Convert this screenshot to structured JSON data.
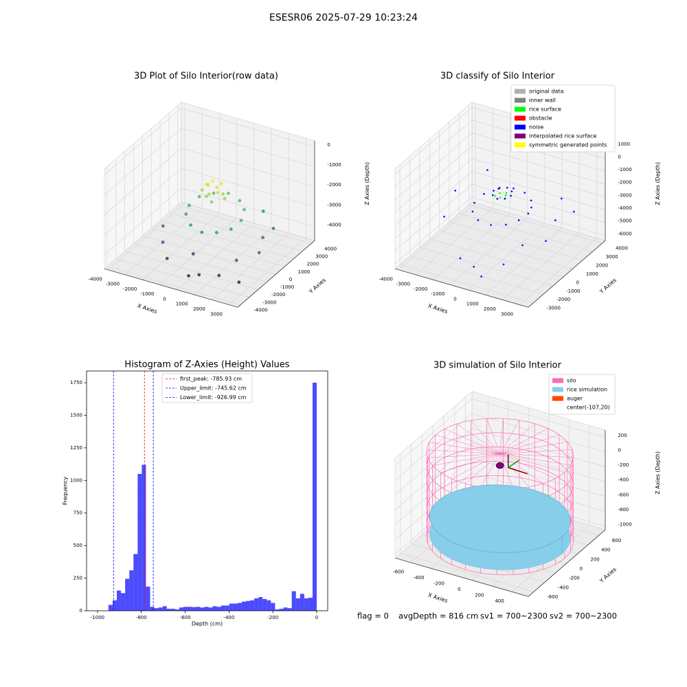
{
  "suptitle": "ESESR06 2025-07-29 10:23:24",
  "footer": [
    "flag = 0",
    "avgDepth = 816 cm",
    "sv1 = 700~2300",
    "sv2 = 700~2300"
  ],
  "chart_data": [
    {
      "type": "scatter3d",
      "title": "3D Plot of Silo Interior(row data)",
      "x_label": "X Axies",
      "y_label": "Y Axies",
      "z_label": "Z Axies (Depth)",
      "xlim": [
        -4200,
        3500
      ],
      "ylim": [
        -4300,
        4400
      ],
      "zlim": [
        -4700,
        300
      ],
      "xticks": [
        -4000,
        -3000,
        -2000,
        -1000,
        0,
        1000,
        2000,
        3000
      ],
      "yticks": [
        -4000,
        -3000,
        -2000,
        -1000,
        0,
        1000,
        2000,
        3000,
        4000
      ],
      "zticks": [
        0,
        -1000,
        -2000,
        -3000,
        -4000
      ],
      "colormap": "viridis",
      "points": {
        "x": [
          -500,
          -300,
          0,
          200,
          -200,
          100,
          -600,
          300,
          -400,
          0,
          500,
          -800,
          1500,
          1300,
          750,
          0,
          -750,
          -1300,
          -1500,
          -1300,
          -750,
          0,
          750,
          1300,
          2500,
          2800,
          2000,
          -2500,
          -2000,
          2600,
          1500,
          -1500,
          500,
          1500,
          -500,
          2500,
          0
        ],
        "y": [
          0,
          300,
          200,
          -100,
          -300,
          500,
          400,
          300,
          -200,
          -400,
          100,
          100,
          0,
          750,
          1300,
          1500,
          1300,
          750,
          0,
          -750,
          -1300,
          -1500,
          -1300,
          -750,
          500,
          -500,
          -1500,
          -1000,
          -2000,
          1500,
          2500,
          -2500,
          -2800,
          -2500,
          -1500,
          -2200,
          -3000
        ],
        "z": [
          -1200,
          -1100,
          -1300,
          -1400,
          -1500,
          -1200,
          -1400,
          -1600,
          -1700,
          -1800,
          -1700,
          -1600,
          -2500,
          -2300,
          -2200,
          -2100,
          -2200,
          -2300,
          -2500,
          -2600,
          -2800,
          -2900,
          -2800,
          -2700,
          -3300,
          -3600,
          -3800,
          -3400,
          -3700,
          -3200,
          -3000,
          -4200,
          -4400,
          -4300,
          -4100,
          -4500,
          -4500
        ]
      }
    },
    {
      "type": "classify3d",
      "title": "3D classify of Silo Interior",
      "x_label": "X Axies",
      "y_label": "Y Axies",
      "z_label": "Z Axies (Depth)",
      "xlim": [
        -4200,
        3500
      ],
      "ylim": [
        -3500,
        4300
      ],
      "zlim": [
        -6400,
        1400
      ],
      "xticks": [
        -4000,
        -3000,
        -2000,
        -1000,
        0,
        1000,
        2000,
        3000
      ],
      "yticks": [
        -3000,
        -2000,
        -1000,
        0,
        1000,
        2000,
        3000,
        4000
      ],
      "zticks": [
        1000,
        0,
        -1000,
        -2000,
        -3000,
        -4000,
        -5000,
        -6000
      ],
      "series": [
        {
          "name": "original data",
          "color": "#b0b0b0"
        },
        {
          "name": "inner wall",
          "color": "#808080"
        },
        {
          "name": "rice surface",
          "color": "#00ff00",
          "x": [
            200,
            -200,
            0,
            300,
            -300,
            100
          ],
          "y": [
            0,
            100,
            -200,
            -250,
            -200,
            250
          ],
          "z": [
            -1300,
            -1350,
            -1400,
            -1350,
            -1400,
            -1300
          ]
        },
        {
          "name": "obstacle",
          "color": "#ff0000"
        },
        {
          "name": "noise",
          "color": "#0000ff",
          "x": [
            1500,
            1400,
            1100,
            500,
            -200,
            -900,
            -1400,
            -1500,
            -1200,
            -600,
            200,
            900,
            1300,
            500,
            350,
            0,
            -350,
            -500,
            -350,
            0,
            350,
            2500,
            2800,
            -2500,
            -3000,
            1500,
            -1000,
            2000,
            500,
            -2000,
            3000,
            -500,
            2200
          ],
          "y": [
            0,
            500,
            1000,
            1400,
            1500,
            1200,
            600,
            -200,
            -900,
            -1400,
            -1500,
            -1200,
            -600,
            0,
            350,
            500,
            350,
            0,
            -350,
            -500,
            -350,
            1000,
            -500,
            -1500,
            500,
            -2500,
            -2500,
            2500,
            -3000,
            2000,
            2000,
            -2000,
            -1800
          ],
          "z": [
            -2200,
            -2100,
            -2000,
            -1900,
            -1900,
            -2000,
            -2200,
            -2400,
            -2500,
            -2600,
            -2600,
            -2500,
            -2400,
            -1200,
            -1150,
            -1100,
            -1150,
            -1200,
            -1250,
            -1300,
            -1250,
            -3000,
            -3500,
            -3000,
            -2500,
            -4500,
            -5000,
            -2500,
            -5500,
            -1500,
            -2800,
            -5800,
            -3200
          ]
        },
        {
          "name": "interpolated rice surface",
          "color": "#800080"
        },
        {
          "name": "symmetric generated points",
          "color": "#ffff00"
        }
      ]
    },
    {
      "type": "histogram",
      "title": "Histogram of Z-Axies (Height) Values",
      "x_label": "Depth (cm)",
      "y_label": "Frequency",
      "color": "#0000ff",
      "alpha": 0.7,
      "xlim": [
        -1050,
        50
      ],
      "ylim": [
        0,
        1840
      ],
      "xticks": [
        -1000,
        -800,
        -600,
        -400,
        -200,
        0
      ],
      "yticks": [
        0,
        250,
        500,
        750,
        1000,
        1250,
        1500,
        1750
      ],
      "bins": [
        -950,
        -931,
        -912,
        -893,
        -874,
        -855,
        -836,
        -817,
        -798,
        -779,
        -760,
        -741,
        -722,
        -703,
        -684,
        -665,
        -646,
        -627,
        -608,
        -589,
        -570,
        -551,
        -532,
        -513,
        -494,
        -475,
        -456,
        -437,
        -418,
        -399,
        -380,
        -361,
        -342,
        -323,
        -304,
        -285,
        -266,
        -247,
        -228,
        -209,
        -190,
        -171,
        -152,
        -133,
        -114,
        -95,
        -76,
        -57,
        -38,
        -19,
        0
      ],
      "counts": [
        45,
        80,
        155,
        135,
        245,
        310,
        435,
        1050,
        1120,
        185,
        30,
        20,
        25,
        35,
        15,
        15,
        10,
        25,
        30,
        30,
        28,
        30,
        25,
        30,
        25,
        35,
        30,
        40,
        40,
        55,
        55,
        60,
        70,
        75,
        80,
        95,
        105,
        90,
        80,
        60,
        10,
        15,
        25,
        20,
        150,
        95,
        130,
        95,
        100,
        1750
      ],
      "vlines": [
        {
          "value": -785.93,
          "label": "first_peak: -785.93 cm",
          "color": "#ff0000"
        },
        {
          "value": -745.62,
          "label": "Upper_limit: -745.62 cm",
          "color": "#0000ff"
        },
        {
          "value": -926.99,
          "label": "Lower_limit: -926.99 cm",
          "color": "#0000ff"
        }
      ]
    },
    {
      "type": "silo3d",
      "title": "3D simulation of Silo Interior",
      "x_label": "X Axies",
      "y_label": "Y Axies",
      "z_label": "Z Axies (Depth)",
      "xlim": [
        -760,
        560
      ],
      "ylim": [
        -700,
        720
      ],
      "zlim": [
        -1050,
        300
      ],
      "xticks": [
        -600,
        -400,
        -200,
        0,
        200,
        400
      ],
      "yticks": [
        -600,
        -400,
        -200,
        0,
        200,
        400,
        600
      ],
      "zticks": [
        200,
        0,
        -200,
        -400,
        -600,
        -800,
        -1000
      ],
      "center": [
        -107,
        20
      ],
      "radius": 640,
      "silo_z": [
        -1000,
        160
      ],
      "rice_level": -720,
      "series": [
        {
          "name": "silo",
          "color": "#ff69b4"
        },
        {
          "name": "rice simulation",
          "color": "#87ceeb"
        },
        {
          "name": "auger",
          "color": "#ff4500"
        },
        {
          "name": "center(-107,20)"
        }
      ]
    }
  ]
}
